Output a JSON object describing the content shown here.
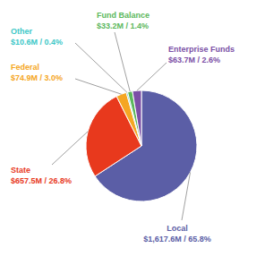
{
  "chart_data": {
    "type": "pie",
    "categories": [
      "Local",
      "State",
      "Federal",
      "Other",
      "Fund Balance",
      "Enterprise Funds"
    ],
    "values": [
      65.8,
      26.8,
      3.0,
      0.4,
      1.4,
      2.6
    ],
    "value_labels": [
      "$1,617.6M / 65.8%",
      "$657.5M / 26.8%",
      "$74.9M / 3.0%",
      "$10.6M / 0.4%",
      "$33.2M / 1.4%",
      "$63.7M / 2.6%"
    ],
    "colors": [
      "#5b5ea6",
      "#e8391d",
      "#f5a623",
      "#40c8c8",
      "#5cb85c",
      "#7b4fa6"
    ],
    "data_labels": true
  }
}
